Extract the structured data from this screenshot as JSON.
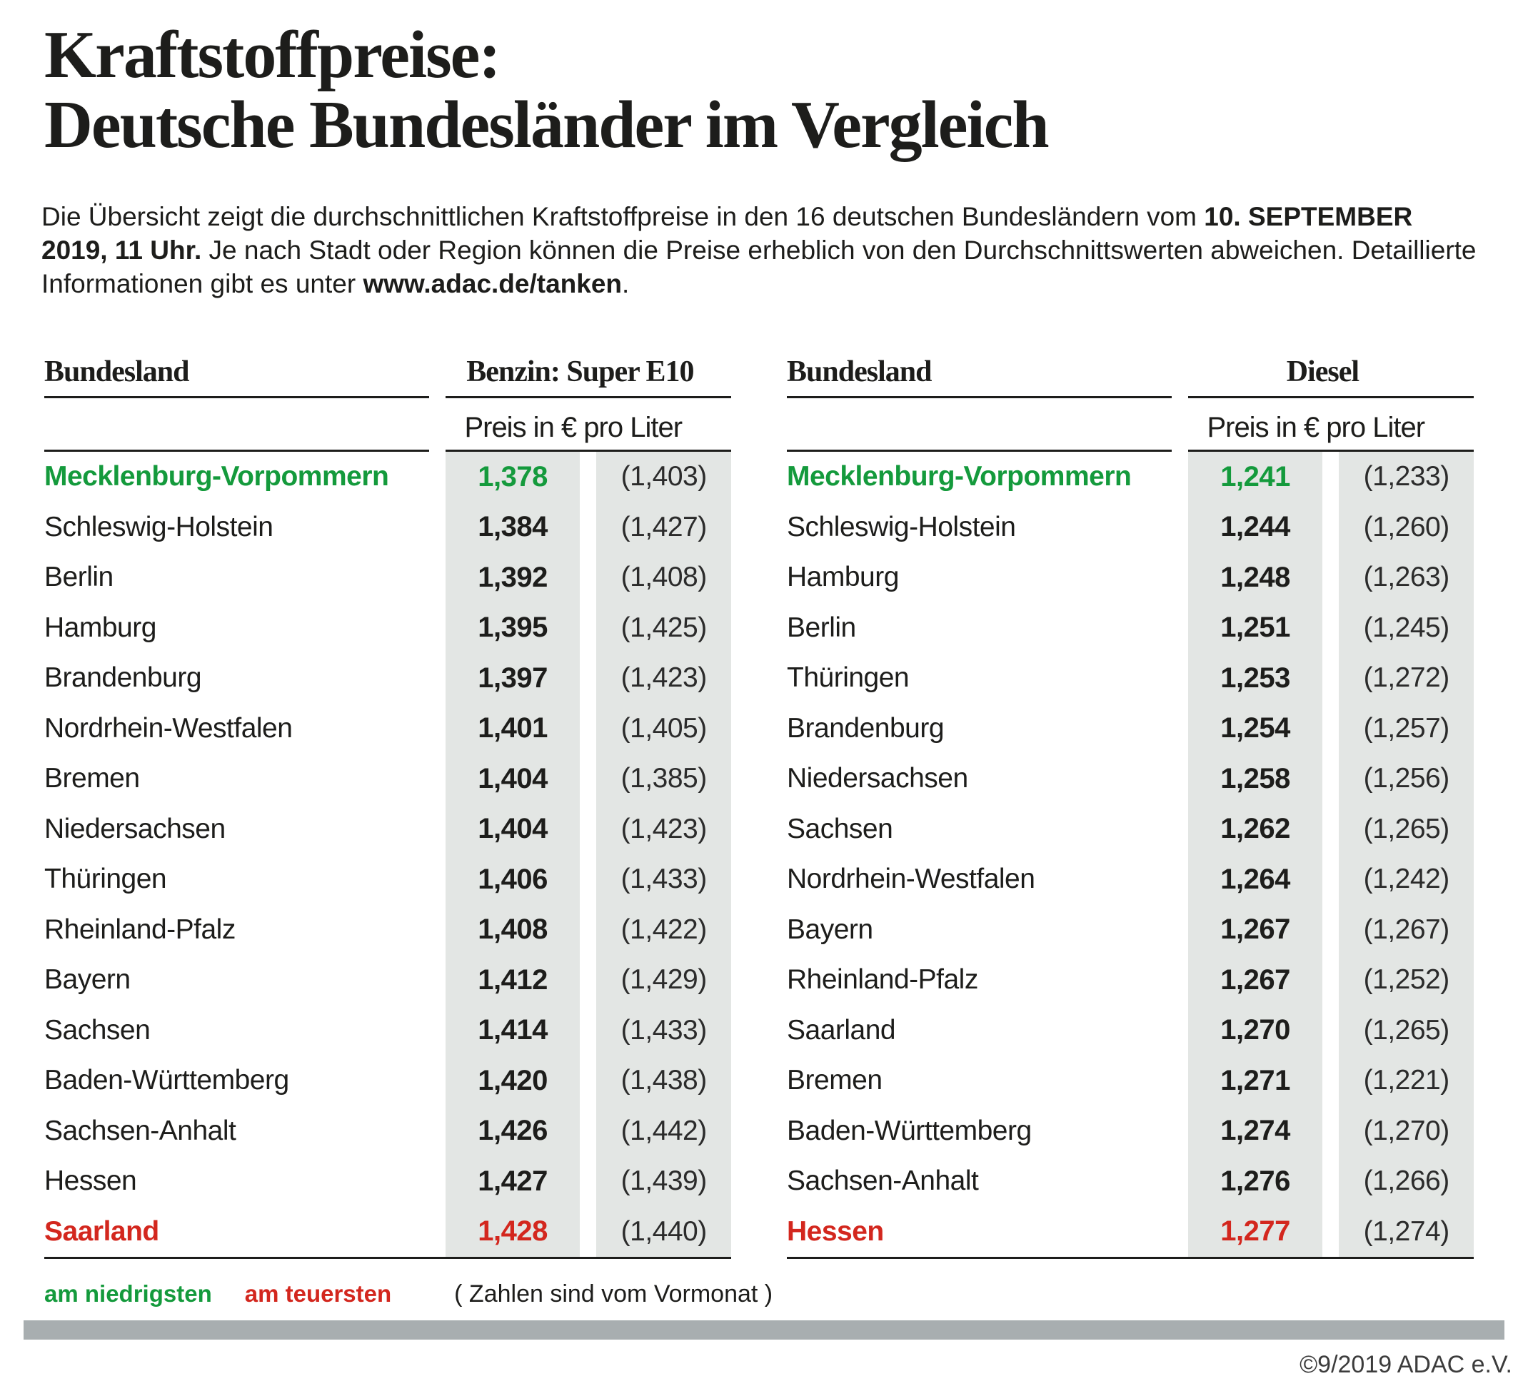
{
  "title": {
    "line1": "Kraftstoffpreise:",
    "line2": "Deutsche Bundesländer im Vergleich"
  },
  "intro": {
    "part1": "Die Übersicht zeigt die durchschnittlichen Kraftstoffpreise in den 16 deutschen Bundesländern vom ",
    "bold1": "10. SEPTEMBER 2019, 11 Uhr.",
    "part2": " Je nach Stadt oder Region können die Preise erheblich von den Durchschnittswerten abweichen. Detaillierte Informationen gibt es unter ",
    "bold2": "www.adac.de/tanken",
    "part3": "."
  },
  "tables": [
    {
      "bundesland_header": "Bundesland",
      "fuel_header": "Benzin: Super E10",
      "price_unit": "Preis in € pro Liter",
      "rows": [
        {
          "name": "Mecklenburg-Vorpommern",
          "price": "1,378",
          "prev": "(1,403)",
          "highlight": "lowest"
        },
        {
          "name": "Schleswig-Holstein",
          "price": "1,384",
          "prev": "(1,427)",
          "highlight": null
        },
        {
          "name": "Berlin",
          "price": "1,392",
          "prev": "(1,408)",
          "highlight": null
        },
        {
          "name": "Hamburg",
          "price": "1,395",
          "prev": "(1,425)",
          "highlight": null
        },
        {
          "name": "Brandenburg",
          "price": "1,397",
          "prev": "(1,423)",
          "highlight": null
        },
        {
          "name": "Nordrhein-Westfalen",
          "price": "1,401",
          "prev": "(1,405)",
          "highlight": null
        },
        {
          "name": "Bremen",
          "price": "1,404",
          "prev": "(1,385)",
          "highlight": null
        },
        {
          "name": "Niedersachsen",
          "price": "1,404",
          "prev": "(1,423)",
          "highlight": null
        },
        {
          "name": "Thüringen",
          "price": "1,406",
          "prev": "(1,433)",
          "highlight": null
        },
        {
          "name": "Rheinland-Pfalz",
          "price": "1,408",
          "prev": "(1,422)",
          "highlight": null
        },
        {
          "name": "Bayern",
          "price": "1,412",
          "prev": "(1,429)",
          "highlight": null
        },
        {
          "name": "Sachsen",
          "price": "1,414",
          "prev": "(1,433)",
          "highlight": null
        },
        {
          "name": "Baden-Württemberg",
          "price": "1,420",
          "prev": "(1,438)",
          "highlight": null
        },
        {
          "name": "Sachsen-Anhalt",
          "price": "1,426",
          "prev": "(1,442)",
          "highlight": null
        },
        {
          "name": "Hessen",
          "price": "1,427",
          "prev": "(1,439)",
          "highlight": null
        },
        {
          "name": "Saarland",
          "price": "1,428",
          "prev": "(1,440)",
          "highlight": "highest"
        }
      ]
    },
    {
      "bundesland_header": "Bundesland",
      "fuel_header": "Diesel",
      "price_unit": "Preis in € pro Liter",
      "rows": [
        {
          "name": "Mecklenburg-Vorpommern",
          "price": "1,241",
          "prev": "(1,233)",
          "highlight": "lowest"
        },
        {
          "name": "Schleswig-Holstein",
          "price": "1,244",
          "prev": "(1,260)",
          "highlight": null
        },
        {
          "name": "Hamburg",
          "price": "1,248",
          "prev": "(1,263)",
          "highlight": null
        },
        {
          "name": "Berlin",
          "price": "1,251",
          "prev": "(1,245)",
          "highlight": null
        },
        {
          "name": "Thüringen",
          "price": "1,253",
          "prev": "(1,272)",
          "highlight": null
        },
        {
          "name": "Brandenburg",
          "price": "1,254",
          "prev": "(1,257)",
          "highlight": null
        },
        {
          "name": "Niedersachsen",
          "price": "1,258",
          "prev": "(1,256)",
          "highlight": null
        },
        {
          "name": "Sachsen",
          "price": "1,262",
          "prev": "(1,265)",
          "highlight": null
        },
        {
          "name": "Nordrhein-Westfalen",
          "price": "1,264",
          "prev": "(1,242)",
          "highlight": null
        },
        {
          "name": "Bayern",
          "price": "1,267",
          "prev": "(1,267)",
          "highlight": null
        },
        {
          "name": "Rheinland-Pfalz",
          "price": "1,267",
          "prev": "(1,252)",
          "highlight": null
        },
        {
          "name": "Saarland",
          "price": "1,270",
          "prev": "(1,265)",
          "highlight": null
        },
        {
          "name": "Bremen",
          "price": "1,271",
          "prev": "(1,221)",
          "highlight": null
        },
        {
          "name": "Baden-Württemberg",
          "price": "1,274",
          "prev": "(1,270)",
          "highlight": null
        },
        {
          "name": "Sachsen-Anhalt",
          "price": "1,276",
          "prev": "(1,266)",
          "highlight": null
        },
        {
          "name": "Hessen",
          "price": "1,277",
          "prev": "(1,274)",
          "highlight": "highest"
        }
      ]
    }
  ],
  "legend": {
    "lowest_label": "am niedrigsten",
    "highest_label": "am teuersten",
    "note": "( Zahlen sind vom Vormonat )"
  },
  "footer": {
    "copyright": "©9/2019 ADAC e.V."
  },
  "colors": {
    "green": "#149a3c",
    "red": "#d3271e",
    "cell_bg": "#e3e6e4",
    "bar": "#a8aeb0"
  },
  "chart_data": [
    {
      "type": "table",
      "title": "Benzin: Super E10",
      "unit": "Preis in € pro Liter",
      "columns": [
        "Bundesland",
        "Preis",
        "Vormonat"
      ],
      "rows": [
        [
          "Mecklenburg-Vorpommern",
          1.378,
          1.403
        ],
        [
          "Schleswig-Holstein",
          1.384,
          1.427
        ],
        [
          "Berlin",
          1.392,
          1.408
        ],
        [
          "Hamburg",
          1.395,
          1.425
        ],
        [
          "Brandenburg",
          1.397,
          1.423
        ],
        [
          "Nordrhein-Westfalen",
          1.401,
          1.405
        ],
        [
          "Bremen",
          1.404,
          1.385
        ],
        [
          "Niedersachsen",
          1.404,
          1.423
        ],
        [
          "Thüringen",
          1.406,
          1.433
        ],
        [
          "Rheinland-Pfalz",
          1.408,
          1.422
        ],
        [
          "Bayern",
          1.412,
          1.429
        ],
        [
          "Sachsen",
          1.414,
          1.433
        ],
        [
          "Baden-Württemberg",
          1.42,
          1.438
        ],
        [
          "Sachsen-Anhalt",
          1.426,
          1.442
        ],
        [
          "Hessen",
          1.427,
          1.439
        ],
        [
          "Saarland",
          1.428,
          1.44
        ]
      ],
      "annotations": {
        "lowest": "Mecklenburg-Vorpommern",
        "highest": "Saarland"
      }
    },
    {
      "type": "table",
      "title": "Diesel",
      "unit": "Preis in € pro Liter",
      "columns": [
        "Bundesland",
        "Preis",
        "Vormonat"
      ],
      "rows": [
        [
          "Mecklenburg-Vorpommern",
          1.241,
          1.233
        ],
        [
          "Schleswig-Holstein",
          1.244,
          1.26
        ],
        [
          "Hamburg",
          1.248,
          1.263
        ],
        [
          "Berlin",
          1.251,
          1.245
        ],
        [
          "Thüringen",
          1.253,
          1.272
        ],
        [
          "Brandenburg",
          1.254,
          1.257
        ],
        [
          "Niedersachsen",
          1.258,
          1.256
        ],
        [
          "Sachsen",
          1.262,
          1.265
        ],
        [
          "Nordrhein-Westfalen",
          1.264,
          1.242
        ],
        [
          "Bayern",
          1.267,
          1.267
        ],
        [
          "Rheinland-Pfalz",
          1.267,
          1.252
        ],
        [
          "Saarland",
          1.27,
          1.265
        ],
        [
          "Bremen",
          1.271,
          1.221
        ],
        [
          "Baden-Württemberg",
          1.274,
          1.27
        ],
        [
          "Sachsen-Anhalt",
          1.276,
          1.266
        ],
        [
          "Hessen",
          1.277,
          1.274
        ]
      ],
      "annotations": {
        "lowest": "Mecklenburg-Vorpommern",
        "highest": "Hessen"
      }
    }
  ]
}
